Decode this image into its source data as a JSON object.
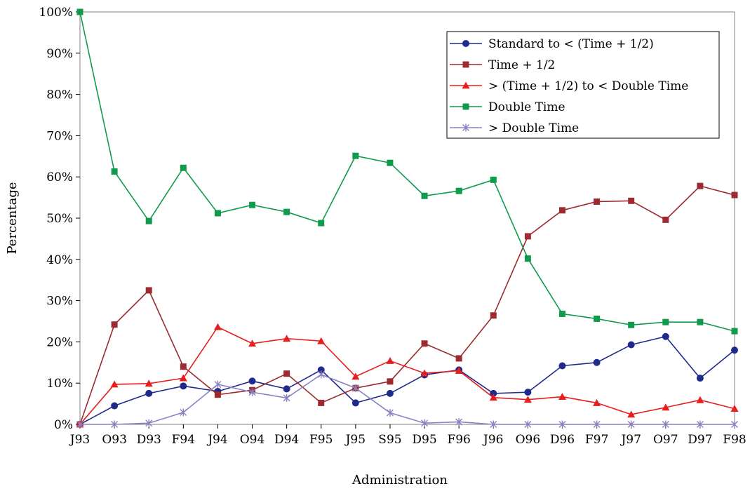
{
  "chart_data": {
    "type": "line",
    "title": "",
    "xlabel": "Administration",
    "ylabel": "Percentage",
    "ylim": [
      0,
      100
    ],
    "y_ticks": [
      "0%",
      "10%",
      "20%",
      "30%",
      "40%",
      "50%",
      "60%",
      "70%",
      "80%",
      "90%",
      "100%"
    ],
    "grid": false,
    "legend_position": "top-right",
    "categories": [
      "J93",
      "O93",
      "D93",
      "F94",
      "J94",
      "O94",
      "D94",
      "F95",
      "J95",
      "S95",
      "D95",
      "F96",
      "J96",
      "O96",
      "D96",
      "F97",
      "J97",
      "O97",
      "D97",
      "F98"
    ],
    "series": [
      {
        "name": "Standard to < (Time + 1/2)",
        "color": "#1f2a8c",
        "marker": "circle",
        "values": [
          0,
          4.5,
          7.5,
          9.3,
          8.0,
          10.5,
          8.6,
          13.2,
          5.2,
          7.5,
          12.0,
          13.2,
          7.5,
          7.8,
          14.2,
          15.0,
          19.3,
          21.3,
          11.2,
          18.0
        ]
      },
      {
        "name": "Time + 1/2",
        "color": "#9c2a2f",
        "marker": "square",
        "values": [
          0,
          24.2,
          32.5,
          14.0,
          7.2,
          8.3,
          12.3,
          5.2,
          8.8,
          10.4,
          19.6,
          16.0,
          26.4,
          45.6,
          51.9,
          54.0,
          54.2,
          49.6,
          57.8,
          55.6
        ]
      },
      {
        "name": "> (Time + 1/2) to < Double Time",
        "color": "#e81d1d",
        "marker": "triangle",
        "values": [
          0,
          9.7,
          9.9,
          11.2,
          23.6,
          19.6,
          20.8,
          20.2,
          11.6,
          15.4,
          12.4,
          13.0,
          6.5,
          6.0,
          6.7,
          5.2,
          2.4,
          4.1,
          5.9,
          3.8
        ]
      },
      {
        "name": "Double Time",
        "color": "#0f9a4c",
        "marker": "square",
        "values": [
          100,
          61.3,
          49.3,
          62.2,
          51.2,
          53.2,
          51.5,
          48.8,
          65.1,
          63.4,
          55.4,
          56.6,
          59.3,
          40.2,
          26.8,
          25.6,
          24.1,
          24.8,
          24.8,
          22.6
        ]
      },
      {
        "name": "> Double Time",
        "color": "#8a82c0",
        "marker": "star",
        "values": [
          0,
          0,
          0.3,
          2.9,
          9.7,
          7.8,
          6.4,
          12.1,
          8.8,
          2.8,
          0.3,
          0.6,
          0,
          0,
          0,
          0,
          0,
          0,
          0,
          0
        ]
      }
    ]
  }
}
